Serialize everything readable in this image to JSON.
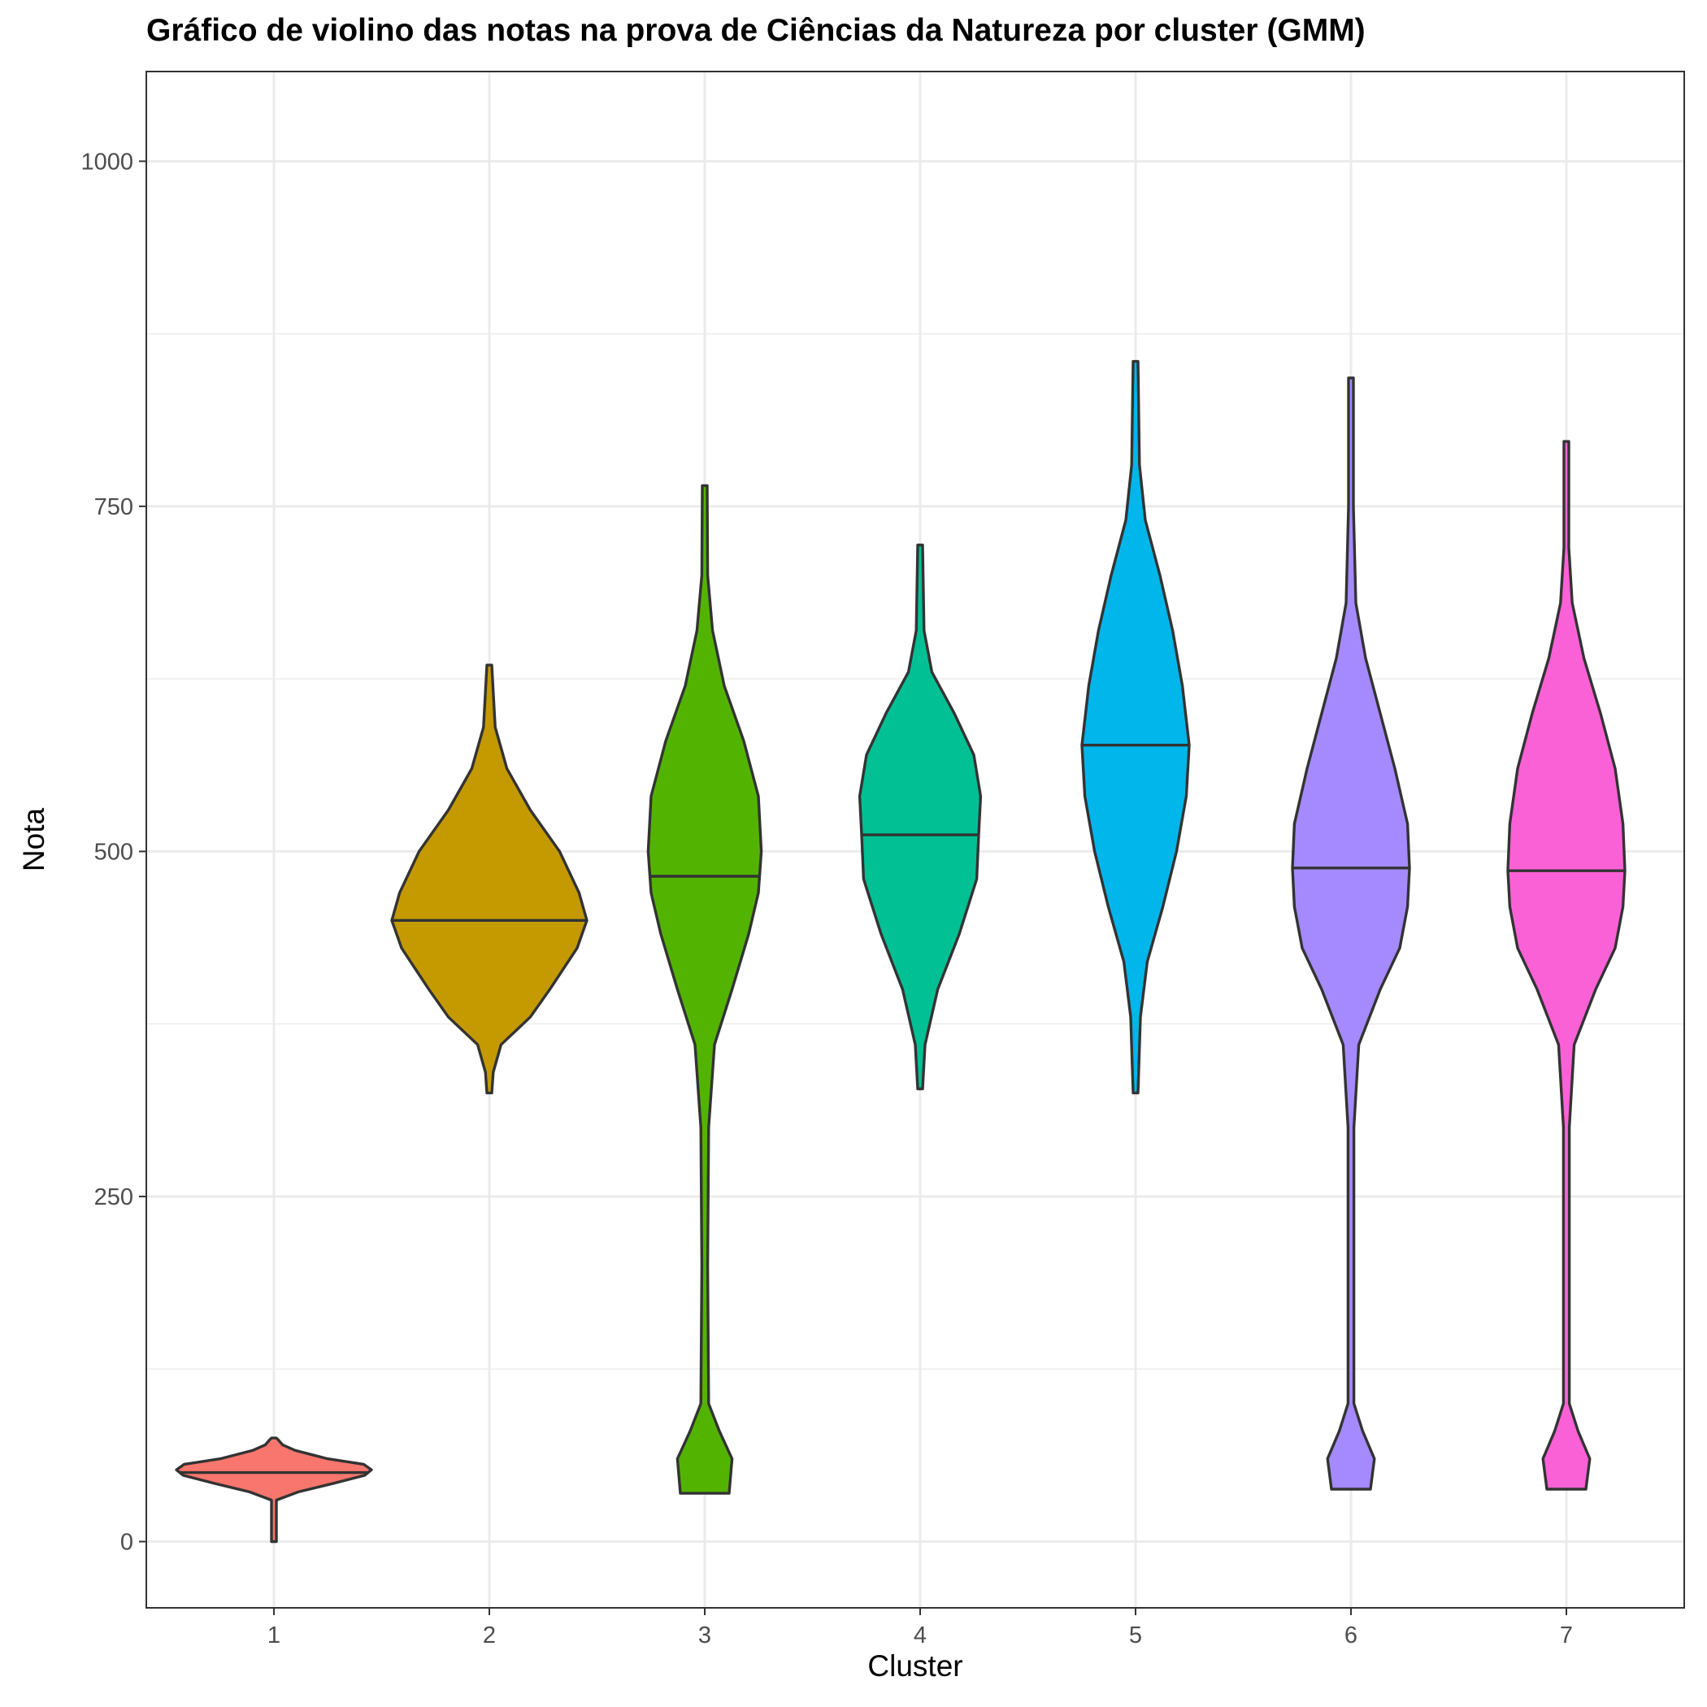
{
  "chart_data": {
    "type": "violin",
    "title": "Gráfico de violino das notas na prova de Ciências da Natureza por cluster (GMM)",
    "xlabel": "Cluster",
    "ylabel": "Nota",
    "categories": [
      "1",
      "2",
      "3",
      "4",
      "5",
      "6",
      "7"
    ],
    "ylim": [
      -48,
      1065
    ],
    "yticks": [
      0,
      250,
      500,
      750,
      1000
    ],
    "grid": true,
    "legend": "none",
    "series": [
      {
        "category": "1",
        "color": "#F8766D",
        "min": 0,
        "max": 75,
        "median": 50,
        "profile": [
          [
            0,
            0.0
          ],
          [
            30,
            0.02
          ],
          [
            36,
            0.25
          ],
          [
            42,
            0.6
          ],
          [
            48,
            0.93
          ],
          [
            52,
            1.0
          ],
          [
            56,
            0.92
          ],
          [
            60,
            0.55
          ],
          [
            66,
            0.22
          ],
          [
            70,
            0.09
          ],
          [
            74,
            0.04
          ],
          [
            75,
            0.0
          ]
        ]
      },
      {
        "category": "2",
        "color": "#C49A00",
        "min": 325,
        "max": 635,
        "median": 450,
        "profile": [
          [
            325,
            0.02
          ],
          [
            340,
            0.04
          ],
          [
            360,
            0.12
          ],
          [
            380,
            0.42
          ],
          [
            400,
            0.62
          ],
          [
            430,
            0.9
          ],
          [
            450,
            1.0
          ],
          [
            470,
            0.92
          ],
          [
            500,
            0.72
          ],
          [
            530,
            0.42
          ],
          [
            560,
            0.18
          ],
          [
            590,
            0.06
          ],
          [
            635,
            0.0
          ]
        ]
      },
      {
        "category": "3",
        "color": "#53B400",
        "min": 35,
        "max": 765,
        "median": 482,
        "profile": [
          [
            35,
            0.25
          ],
          [
            60,
            0.28
          ],
          [
            80,
            0.15
          ],
          [
            100,
            0.04
          ],
          [
            200,
            0.03
          ],
          [
            300,
            0.04
          ],
          [
            360,
            0.1
          ],
          [
            400,
            0.28
          ],
          [
            440,
            0.45
          ],
          [
            470,
            0.55
          ],
          [
            500,
            0.58
          ],
          [
            540,
            0.55
          ],
          [
            580,
            0.4
          ],
          [
            620,
            0.2
          ],
          [
            660,
            0.08
          ],
          [
            700,
            0.03
          ],
          [
            765,
            0.0
          ]
        ]
      },
      {
        "category": "4",
        "color": "#00C094",
        "min": 328,
        "max": 722,
        "median": 512,
        "profile": [
          [
            328,
            0.02
          ],
          [
            360,
            0.05
          ],
          [
            400,
            0.18
          ],
          [
            440,
            0.4
          ],
          [
            480,
            0.58
          ],
          [
            512,
            0.6
          ],
          [
            540,
            0.62
          ],
          [
            570,
            0.55
          ],
          [
            600,
            0.35
          ],
          [
            630,
            0.12
          ],
          [
            660,
            0.04
          ],
          [
            722,
            0.0
          ]
        ]
      },
      {
        "category": "5",
        "color": "#00B6EB",
        "min": 325,
        "max": 855,
        "median": 577,
        "profile": [
          [
            325,
            0.02
          ],
          [
            380,
            0.05
          ],
          [
            420,
            0.12
          ],
          [
            460,
            0.28
          ],
          [
            500,
            0.42
          ],
          [
            540,
            0.52
          ],
          [
            577,
            0.55
          ],
          [
            620,
            0.48
          ],
          [
            660,
            0.38
          ],
          [
            700,
            0.25
          ],
          [
            740,
            0.1
          ],
          [
            780,
            0.04
          ],
          [
            855,
            0.0
          ]
        ]
      },
      {
        "category": "6",
        "color": "#A58AFF",
        "min": 38,
        "max": 843,
        "median": 488,
        "profile": [
          [
            38,
            0.2
          ],
          [
            60,
            0.24
          ],
          [
            80,
            0.12
          ],
          [
            100,
            0.03
          ],
          [
            200,
            0.03
          ],
          [
            300,
            0.03
          ],
          [
            360,
            0.08
          ],
          [
            400,
            0.3
          ],
          [
            430,
            0.5
          ],
          [
            460,
            0.58
          ],
          [
            488,
            0.6
          ],
          [
            520,
            0.58
          ],
          [
            560,
            0.45
          ],
          [
            600,
            0.3
          ],
          [
            640,
            0.15
          ],
          [
            680,
            0.05
          ],
          [
            750,
            0.02
          ],
          [
            843,
            0.0
          ]
        ]
      },
      {
        "category": "7",
        "color": "#FB61D7",
        "min": 38,
        "max": 797,
        "median": 486,
        "profile": [
          [
            38,
            0.2
          ],
          [
            60,
            0.24
          ],
          [
            80,
            0.12
          ],
          [
            100,
            0.03
          ],
          [
            200,
            0.03
          ],
          [
            300,
            0.03
          ],
          [
            360,
            0.08
          ],
          [
            400,
            0.3
          ],
          [
            430,
            0.5
          ],
          [
            460,
            0.58
          ],
          [
            486,
            0.6
          ],
          [
            520,
            0.58
          ],
          [
            560,
            0.5
          ],
          [
            600,
            0.35
          ],
          [
            640,
            0.18
          ],
          [
            680,
            0.06
          ],
          [
            720,
            0.02
          ],
          [
            797,
            0.0
          ]
        ]
      }
    ]
  }
}
